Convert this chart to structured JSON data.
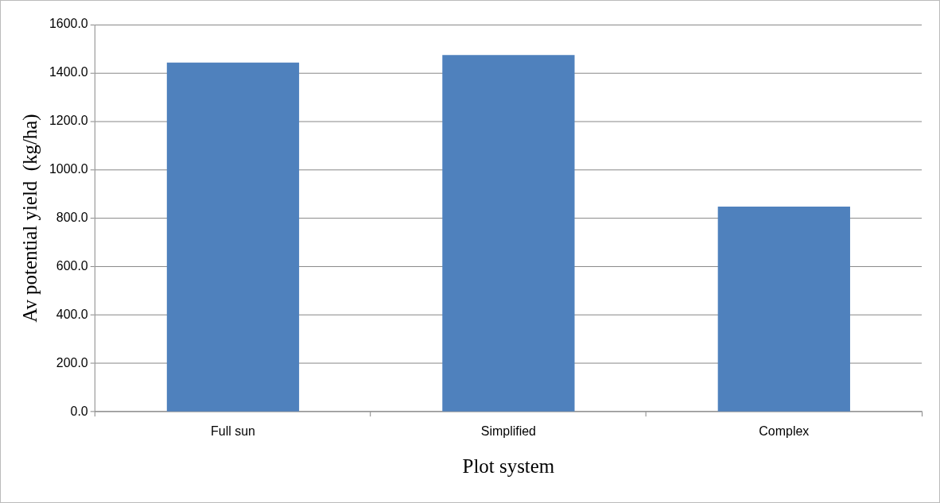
{
  "chart_data": {
    "type": "bar",
    "xlabel": "Plot system",
    "ylabel": "Av potential yield  (kg/ha)",
    "categories": [
      "Full sun",
      "Simplified",
      "Complex"
    ],
    "values": [
      1443,
      1474,
      848
    ],
    "color": "#4f81bd",
    "ylim": [
      0,
      1600
    ],
    "yticks": [
      {
        "value": 0,
        "label": "0.0"
      },
      {
        "value": 200,
        "label": "200.0"
      },
      {
        "value": 400,
        "label": "400.0"
      },
      {
        "value": 600,
        "label": "600.0"
      },
      {
        "value": 800,
        "label": "800.0"
      },
      {
        "value": 1000,
        "label": "1000.0"
      },
      {
        "value": 1200,
        "label": "1200.0"
      },
      {
        "value": 1400,
        "label": "1400.0"
      },
      {
        "value": 1600,
        "label": "1600.0"
      }
    ],
    "grid": "y",
    "legend": false
  }
}
